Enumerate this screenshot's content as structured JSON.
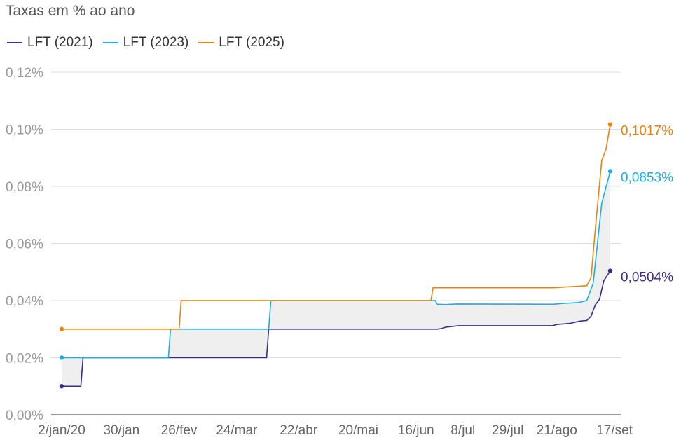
{
  "chart_data": {
    "type": "line",
    "title": "Taxas em % ao ano",
    "xlabel": "",
    "ylabel": "",
    "ylim": [
      0,
      0.12
    ],
    "grid": true,
    "legend_position": "top-left",
    "x_ticks": [
      {
        "day": 0,
        "label": "2/jan/20"
      },
      {
        "day": 28,
        "label": "30/jan"
      },
      {
        "day": 55,
        "label": "26/fev"
      },
      {
        "day": 82,
        "label": "24/mar"
      },
      {
        "day": 111,
        "label": "22/abr"
      },
      {
        "day": 139,
        "label": "20/mai"
      },
      {
        "day": 166,
        "label": "16/jun"
      },
      {
        "day": 188,
        "label": "8/jul"
      },
      {
        "day": 209,
        "label": "29/jul"
      },
      {
        "day": 232,
        "label": "21/ago"
      },
      {
        "day": 259,
        "label": "17/set"
      }
    ],
    "y_ticks": [
      {
        "value": 0,
        "label": "0,00%"
      },
      {
        "value": 0.02,
        "label": "0,02%"
      },
      {
        "value": 0.04,
        "label": "0,04%"
      },
      {
        "value": 0.06,
        "label": "0,06%"
      },
      {
        "value": 0.08,
        "label": "0,08%"
      },
      {
        "value": 0.1,
        "label": "0,10%"
      },
      {
        "value": 0.12,
        "label": "0,12%"
      }
    ],
    "series": [
      {
        "name": "LFT (2021)",
        "color": "#3b2d8a",
        "end_label": "0,0504%",
        "points": [
          [
            0,
            0.01
          ],
          [
            9,
            0.01
          ],
          [
            10,
            0.02
          ],
          [
            96,
            0.02
          ],
          [
            97,
            0.03
          ],
          [
            176,
            0.03
          ],
          [
            178,
            0.0302
          ],
          [
            180,
            0.0307
          ],
          [
            186,
            0.0312
          ],
          [
            230,
            0.0312
          ],
          [
            232,
            0.0316
          ],
          [
            238,
            0.032
          ],
          [
            243,
            0.0328
          ],
          [
            246,
            0.033
          ],
          [
            248,
            0.0345
          ],
          [
            250,
            0.0385
          ],
          [
            252,
            0.0405
          ],
          [
            254,
            0.047
          ],
          [
            257,
            0.0504
          ]
        ]
      },
      {
        "name": "LFT (2023)",
        "color": "#1aafe0",
        "end_label": "0,0853%",
        "points": [
          [
            0,
            0.02
          ],
          [
            50,
            0.02
          ],
          [
            51,
            0.03
          ],
          [
            97,
            0.03
          ],
          [
            98,
            0.04
          ],
          [
            175,
            0.04
          ],
          [
            176,
            0.0387
          ],
          [
            180,
            0.0386
          ],
          [
            185,
            0.0388
          ],
          [
            230,
            0.0387
          ],
          [
            235,
            0.039
          ],
          [
            242,
            0.0393
          ],
          [
            246,
            0.04
          ],
          [
            249,
            0.046
          ],
          [
            251,
            0.06
          ],
          [
            253,
            0.074
          ],
          [
            257,
            0.0853
          ]
        ]
      },
      {
        "name": "LFT (2025)",
        "color": "#e8840c",
        "end_label": "0,1017%",
        "points": [
          [
            0,
            0.03
          ],
          [
            55,
            0.03
          ],
          [
            56,
            0.04
          ],
          [
            173,
            0.04
          ],
          [
            174,
            0.0445
          ],
          [
            230,
            0.0445
          ],
          [
            235,
            0.0447
          ],
          [
            242,
            0.045
          ],
          [
            246,
            0.0452
          ],
          [
            248,
            0.048
          ],
          [
            250,
            0.065
          ],
          [
            253,
            0.089
          ],
          [
            255,
            0.093
          ],
          [
            257,
            0.1017
          ]
        ]
      }
    ]
  }
}
